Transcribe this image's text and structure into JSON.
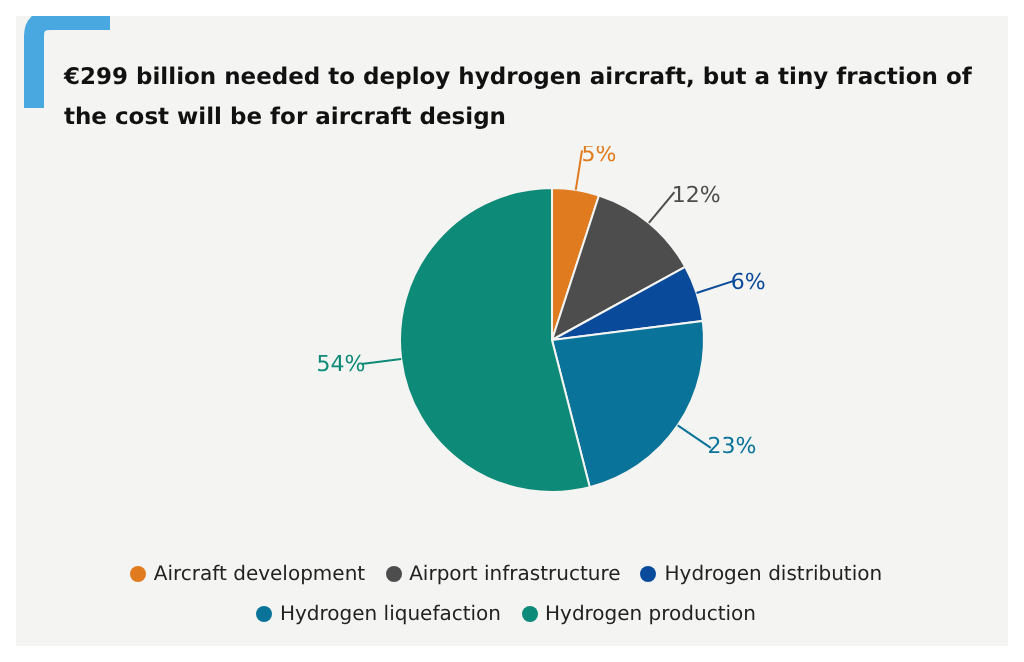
{
  "chart_data": {
    "type": "pie",
    "title": "€299 billion needed to deploy hydrogen aircraft, but a tiny fraction of the cost will be for aircraft design",
    "categories": [
      "Aircraft development",
      "Airport infrastructure",
      "Hydrogen distribution",
      "Hydrogen liquefaction",
      "Hydrogen production"
    ],
    "values": [
      5,
      12,
      6,
      23,
      54
    ],
    "value_labels": [
      "5%",
      "12%",
      "6%",
      "23%",
      "54%"
    ],
    "colors": [
      "#e07b1f",
      "#4d4d4d",
      "#0a4a9a",
      "#0a7399",
      "#0e8a78"
    ],
    "legend": "bottom"
  }
}
